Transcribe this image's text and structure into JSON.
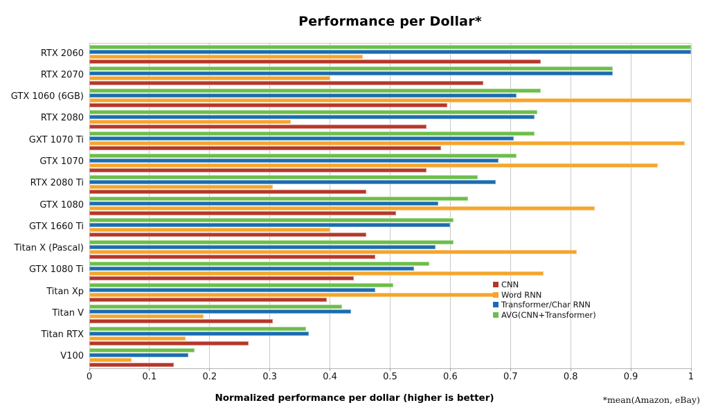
{
  "title": "Performance per Dollar*",
  "xlabel": "Normalized performance per dollar (higher is better)",
  "footnote": "*mean(Amazon, eBay)",
  "chart_data": {
    "type": "bar",
    "orientation": "horizontal",
    "title": "Performance per Dollar*",
    "xlabel": "Normalized performance per dollar (higher is better)",
    "ylabel": "",
    "xlim": [
      0,
      1
    ],
    "xtick_labels": [
      "0",
      "0.1",
      "0.2",
      "0.3",
      "0.4",
      "0.5",
      "0.6",
      "0.7",
      "0.8",
      "0.9",
      "1"
    ],
    "grid": "vertical",
    "legend_position": "inside-bottom-right",
    "footnote": "*mean(Amazon, eBay)",
    "categories": [
      "RTX 2060",
      "RTX 2070",
      "GTX 1060 (6GB)",
      "RTX 2080",
      "GXT 1070 Ti",
      "GTX 1070",
      "RTX 2080 Ti",
      "GTX 1080",
      "GTX 1660 Ti",
      "Titan X (Pascal)",
      "GTX 1080 Ti",
      "Titan Xp",
      "Titan V",
      "Titan RTX",
      "V100"
    ],
    "series": [
      {
        "name": "CNN",
        "color": "#b5372a",
        "values": [
          0.75,
          0.655,
          0.595,
          0.56,
          0.585,
          0.56,
          0.46,
          0.51,
          0.46,
          0.475,
          0.44,
          0.395,
          0.305,
          0.265,
          0.14
        ]
      },
      {
        "name": "Word RNN",
        "color": "#f5a52c",
        "values": [
          0.455,
          0.4,
          1.0,
          0.335,
          0.99,
          0.945,
          0.305,
          0.84,
          0.4,
          0.81,
          0.755,
          0.675,
          0.19,
          0.16,
          0.07
        ]
      },
      {
        "name": "Transformer/Char RNN",
        "color": "#1b6cb0",
        "values": [
          1.0,
          0.87,
          0.71,
          0.74,
          0.705,
          0.68,
          0.675,
          0.58,
          0.6,
          0.575,
          0.54,
          0.475,
          0.435,
          0.365,
          0.165
        ]
      },
      {
        "name": "AVG(CNN+Transformer)",
        "color": "#6cbe4a",
        "values": [
          1.0,
          0.87,
          0.75,
          0.745,
          0.74,
          0.71,
          0.645,
          0.63,
          0.605,
          0.605,
          0.565,
          0.505,
          0.42,
          0.36,
          0.175
        ]
      }
    ],
    "bar_draw_order_top_to_bottom": [
      "AVG(CNN+Transformer)",
      "Transformer/Char RNN",
      "Word RNN",
      "CNN"
    ],
    "grid_color": "#c8c8c8"
  }
}
